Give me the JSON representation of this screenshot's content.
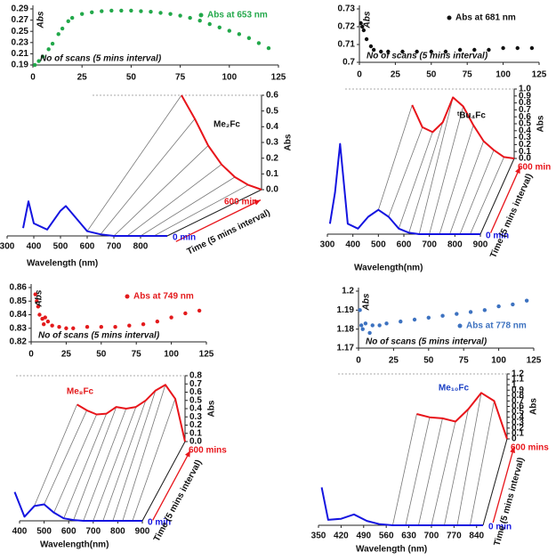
{
  "chart_data": [
    {
      "type": "scatter",
      "xlabel": "No of scans (5 mins interval)",
      "ylabel": "Abs",
      "x": [
        1,
        3,
        5,
        8,
        10,
        13,
        15,
        18,
        20,
        25,
        30,
        35,
        40,
        45,
        50,
        55,
        60,
        65,
        70,
        75,
        80,
        85,
        90,
        95,
        100,
        105,
        110,
        115,
        120
      ],
      "series": [
        {
          "name": "Abs at 653 nm",
          "color": "#22a84a",
          "values": [
            0.19,
            0.197,
            0.205,
            0.218,
            0.228,
            0.245,
            0.255,
            0.268,
            0.274,
            0.281,
            0.284,
            0.286,
            0.287,
            0.287,
            0.287,
            0.286,
            0.285,
            0.283,
            0.281,
            0.278,
            0.274,
            0.269,
            0.263,
            0.257,
            0.251,
            0.245,
            0.238,
            0.229,
            0.22
          ]
        }
      ],
      "xlim": [
        0,
        125
      ],
      "xticks": [
        0,
        25,
        50,
        75,
        100,
        125
      ],
      "ylim": [
        0.19,
        0.29
      ],
      "yticks": [
        0.19,
        0.21,
        0.23,
        0.25,
        0.27,
        0.29
      ]
    },
    {
      "type": "waterfall",
      "title": "Me₂Fc",
      "title_color": "#111111",
      "xlabel": "Wavelength (nm)",
      "ylabel": "Abs",
      "zlabel": "Time (5 mins interval)",
      "x": [
        360,
        380,
        400,
        450,
        500,
        520,
        550,
        600,
        650,
        700,
        750,
        800,
        850,
        900
      ],
      "series": [
        {
          "name": "0 min",
          "color": "#1414e0",
          "values": [
            0.05,
            0.22,
            0.08,
            0.04,
            0.16,
            0.19,
            0.13,
            0.03,
            0.01,
            0,
            0,
            0,
            0,
            0
          ]
        },
        {
          "name": "600 min",
          "color": "#e8151b",
          "values": [
            null,
            null,
            null,
            null,
            null,
            null,
            null,
            0.6,
            0.45,
            0.28,
            0.16,
            0.08,
            0.03,
            0
          ]
        }
      ],
      "xlim": [
        300,
        900
      ],
      "xticks": [
        300,
        400,
        500,
        600,
        700,
        800
      ],
      "ylim": [
        0,
        0.6
      ],
      "yticks": [
        {
          "value": 0,
          "label": "0.0"
        },
        0.1,
        0.2,
        0.3,
        0.4,
        0.5,
        0.6
      ]
    },
    {
      "type": "scatter",
      "xlabel": "No of scans (5 mins interval)",
      "ylabel": "Abs",
      "x": [
        1,
        2,
        3,
        5,
        8,
        10,
        15,
        20,
        30,
        40,
        50,
        60,
        70,
        80,
        90,
        100,
        110,
        120
      ],
      "series": [
        {
          "name": "Abs at 681 nm",
          "color": "#111111",
          "values": [
            0.722,
            0.72,
            0.718,
            0.713,
            0.709,
            0.707,
            0.706,
            0.706,
            0.706,
            0.706,
            0.706,
            0.706,
            0.707,
            0.707,
            0.707,
            0.708,
            0.708,
            0.708
          ]
        }
      ],
      "xlim": [
        0,
        125
      ],
      "xticks": [
        0,
        25,
        50,
        75,
        100,
        125
      ],
      "ylim": [
        0.7,
        0.73
      ],
      "yticks": [
        0.7,
        0.71,
        0.72,
        0.73
      ]
    },
    {
      "type": "waterfall",
      "title": "ᵗBu₄Fc",
      "title_color": "#111111",
      "xlabel": "Wavelength(nm)",
      "ylabel": "Abs",
      "zlabel": "Time (5 mins interval)",
      "x": [
        310,
        330,
        350,
        380,
        420,
        460,
        500,
        540,
        580,
        620,
        660,
        700,
        740,
        780,
        820,
        860,
        900
      ],
      "series": [
        {
          "name": "0 min",
          "color": "#1414e0",
          "values": [
            0.15,
            0.6,
            1.3,
            0.15,
            0.08,
            0.25,
            0.35,
            0.25,
            0.08,
            0.02,
            0,
            0,
            0,
            0,
            0,
            0,
            0
          ]
        },
        {
          "name": "600 min",
          "color": "#e8151b",
          "values": [
            null,
            null,
            null,
            null,
            null,
            null,
            0.77,
            0.45,
            0.38,
            0.52,
            0.88,
            0.75,
            0.48,
            0.25,
            0.12,
            0.02,
            0
          ]
        }
      ],
      "xlim": [
        300,
        900
      ],
      "xticks": [
        300,
        400,
        500,
        600,
        700,
        800,
        900
      ],
      "ylim": [
        0,
        1
      ],
      "yticks": [
        {
          "value": 0,
          "label": "0.0"
        },
        0.1,
        0.2,
        0.3,
        0.4,
        0.5,
        0.6,
        0.7,
        0.8,
        0.9,
        {
          "value": 1,
          "label": "1.0"
        }
      ]
    },
    {
      "type": "scatter",
      "xlabel": "No of scans (5 mins interval)",
      "ylabel": "Abs",
      "x": [
        3,
        4,
        5,
        6,
        8,
        9,
        10,
        12,
        15,
        20,
        25,
        30,
        40,
        50,
        60,
        70,
        80,
        90,
        100,
        110,
        120
      ],
      "series": [
        {
          "name": "Abs at 749 nm",
          "color": "#e31a1c",
          "values": [
            0.855,
            0.85,
            0.846,
            0.84,
            0.837,
            0.833,
            0.838,
            0.835,
            0.832,
            0.831,
            0.83,
            0.83,
            0.831,
            0.831,
            0.831,
            0.832,
            0.833,
            0.835,
            0.838,
            0.841,
            0.843
          ]
        }
      ],
      "xlim": [
        0,
        125
      ],
      "xticks": [
        0,
        25,
        50,
        75,
        100,
        125
      ],
      "ylim": [
        0.82,
        0.86
      ],
      "yticks": [
        0.82,
        0.83,
        0.84,
        0.85,
        0.86
      ]
    },
    {
      "type": "waterfall",
      "title": "Me₈Fc",
      "title_color": "#e31a1c",
      "xlabel": "Wavelength(nm)",
      "ylabel": "Abs",
      "zlabel": "Time (5 mins interval)",
      "x": [
        380,
        420,
        460,
        500,
        540,
        580,
        620,
        660,
        700,
        740,
        780,
        820,
        860,
        900
      ],
      "series": [
        {
          "name": "0 min",
          "color": "#1414e0",
          "values": [
            0.35,
            0.05,
            0.18,
            0.2,
            0.1,
            0.03,
            0.01,
            0,
            0,
            0,
            0,
            0,
            0,
            0
          ]
        },
        {
          "name": "600 mins",
          "color": "#e8151b",
          "values": [
            null,
            null,
            0.45,
            0.38,
            0.33,
            0.34,
            0.42,
            0.4,
            0.42,
            0.5,
            0.62,
            0.69,
            0.52,
            0
          ]
        }
      ],
      "xlim": [
        400,
        900
      ],
      "xticks": [
        400,
        500,
        600,
        700,
        800,
        900
      ],
      "ylim": [
        0,
        0.8
      ],
      "yticks": [
        {
          "value": 0,
          "label": "0.0"
        },
        0.1,
        0.2,
        0.3,
        0.4,
        0.5,
        0.6,
        0.7,
        0.8
      ]
    },
    {
      "type": "scatter",
      "xlabel": "No of scans (5 mins interval)",
      "ylabel": "Abs",
      "x": [
        1,
        2,
        3,
        5,
        8,
        10,
        15,
        20,
        30,
        40,
        50,
        60,
        70,
        80,
        90,
        100,
        110,
        120
      ],
      "series": [
        {
          "name": "Abs at 778 nm",
          "color": "#3d72c0",
          "values": [
            1.19,
            1.182,
            1.18,
            1.183,
            1.178,
            1.182,
            1.182,
            1.183,
            1.184,
            1.185,
            1.186,
            1.187,
            1.188,
            1.189,
            1.19,
            1.192,
            1.193,
            1.195
          ]
        }
      ],
      "xlim": [
        0,
        125
      ],
      "xticks": [
        0,
        25,
        50,
        75,
        100,
        125
      ],
      "ylim": [
        1.17,
        1.2
      ],
      "yticks": [
        1.17,
        1.18,
        1.19,
        1.2
      ]
    },
    {
      "type": "waterfall",
      "title": "Me₁₀Fc",
      "title_color": "#1a3fc4",
      "xlabel": "Wavelength (nm)",
      "ylabel": "Abs",
      "zlabel": "Time (5 mins interval)",
      "x": [
        360,
        380,
        420,
        460,
        500,
        540,
        580,
        620,
        660,
        700,
        740,
        780,
        820,
        860
      ],
      "series": [
        {
          "name": "0 min",
          "color": "#1414e0",
          "values": [
            0.7,
            0.1,
            0.12,
            0.2,
            0.08,
            0.02,
            0,
            0,
            0,
            0,
            0,
            0,
            0,
            0
          ]
        },
        {
          "name": "600 mins",
          "color": "#e8151b",
          "values": [
            null,
            null,
            null,
            null,
            null,
            null,
            0.46,
            0.4,
            0.38,
            0.32,
            0.55,
            0.85,
            0.7,
            0
          ]
        }
      ],
      "xlim": [
        350,
        860
      ],
      "xticks": [
        350,
        420,
        490,
        560,
        630,
        700,
        770,
        840
      ],
      "ylim": [
        0,
        1.2
      ],
      "yticks": [
        0,
        0.1,
        0.2,
        0.3,
        0.4,
        0.5,
        0.6,
        0.7,
        0.8,
        0.9,
        1,
        1.1,
        1.2
      ]
    }
  ]
}
